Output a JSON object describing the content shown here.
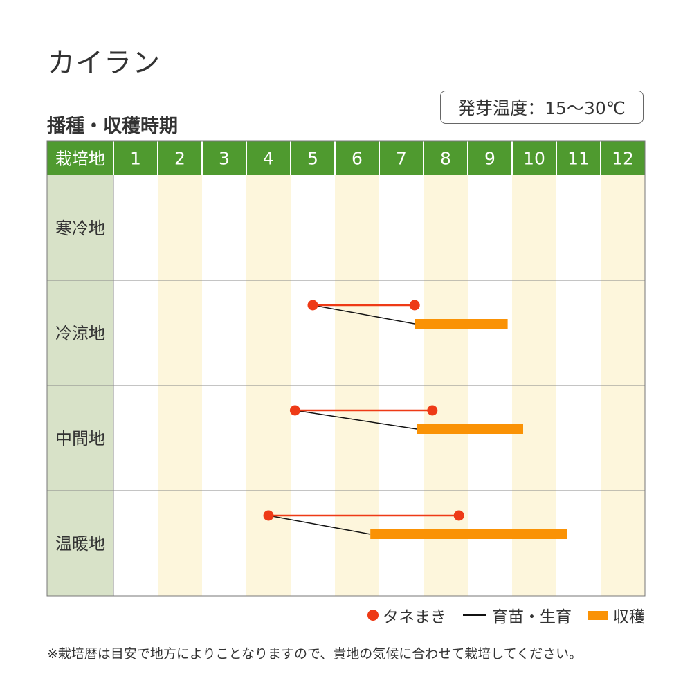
{
  "title": "カイラン",
  "subtitle": "播種・収穫時期",
  "germination_temp": "発芽温度：15〜30℃",
  "legend": {
    "sowing": "タネまき",
    "growing": "育苗・生育",
    "harvest": "収穫"
  },
  "note": "※栽培暦は目安で地方によりことなりますので、貴地の気候に合わせて栽培してください。",
  "colors": {
    "header_green": "#4f9a2f",
    "region_col": "#d8e2c8",
    "stripe": "#fdf6dc",
    "sowing": "#ee3a16",
    "harvest": "#fa9205",
    "growing": "#111111"
  },
  "chart_data": {
    "type": "table",
    "x_unit": "month",
    "header_label": "栽培地",
    "months": [
      "1",
      "2",
      "3",
      "4",
      "5",
      "6",
      "7",
      "8",
      "9",
      "10",
      "11",
      "12"
    ],
    "regions": [
      {
        "name": "寒冷地",
        "sowing": null,
        "growing": null,
        "harvest": null
      },
      {
        "name": "冷涼地",
        "sowing": [
          5.5,
          7.8
        ],
        "growing": [
          5.5,
          7.8
        ],
        "harvest": [
          7.8,
          9.9
        ]
      },
      {
        "name": "中間地",
        "sowing": [
          5.1,
          8.2
        ],
        "growing": [
          5.1,
          7.85
        ],
        "harvest": [
          7.85,
          10.25
        ]
      },
      {
        "name": "温暖地",
        "sowing": [
          4.5,
          8.8
        ],
        "growing": [
          4.5,
          6.8
        ],
        "harvest": [
          6.8,
          11.25
        ]
      }
    ]
  }
}
